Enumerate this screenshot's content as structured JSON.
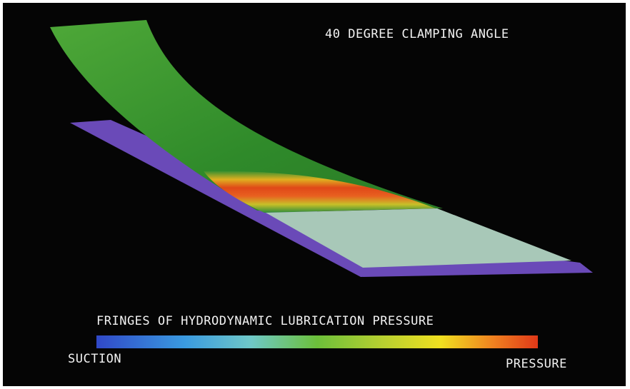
{
  "title": "40 DEGREE CLAMPING ANGLE",
  "legend": {
    "title": "FRINGES OF HYDRODYNAMIC LUBRICATION PRESSURE",
    "low_label": "SUCTION",
    "high_label": "PRESSURE"
  }
}
